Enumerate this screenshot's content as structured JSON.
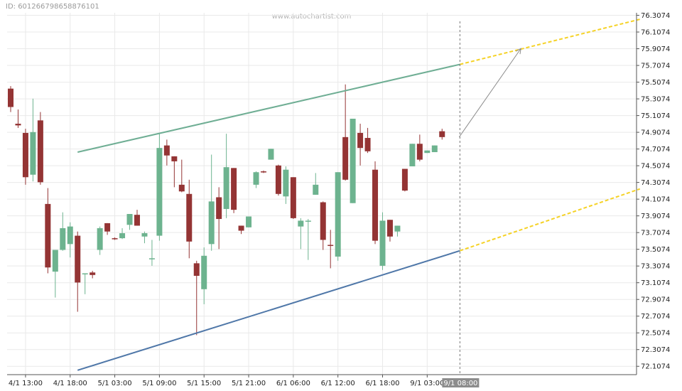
{
  "header": {
    "id_text": "ID: 601266798658876101",
    "watermark": "www.autochartist.com"
  },
  "chart_data": {
    "type": "candlestick",
    "y_ticks": [
      76.3074,
      76.1074,
      75.9074,
      75.7074,
      75.5074,
      75.3074,
      75.1074,
      74.9074,
      74.7074,
      74.5074,
      74.3074,
      74.1074,
      73.9074,
      73.7074,
      73.5074,
      73.3074,
      73.1074,
      72.9074,
      72.7074,
      72.5074,
      72.3074,
      72.1074
    ],
    "ylim": [
      72.0074,
      76.3374
    ],
    "x_labels": [
      {
        "bar": 2,
        "label": "4/1 13:00"
      },
      {
        "bar": 8,
        "label": "4/1 18:00"
      },
      {
        "bar": 14,
        "label": "5/1 03:00"
      },
      {
        "bar": 20,
        "label": "5/1 09:00"
      },
      {
        "bar": 26,
        "label": "5/1 15:00"
      },
      {
        "bar": 32,
        "label": "5/1 21:00"
      },
      {
        "bar": 38,
        "label": "6/1 06:00"
      },
      {
        "bar": 44,
        "label": "6/1 12:00"
      },
      {
        "bar": 50,
        "label": "6/1 18:00"
      },
      {
        "bar": 56,
        "label": "9/1 03:00"
      }
    ],
    "current_time_label": "9/1 08:00",
    "candles": [
      {
        "o": 75.43,
        "h": 75.46,
        "l": 75.15,
        "c": 75.21
      },
      {
        "o": 75.01,
        "h": 75.18,
        "l": 74.96,
        "c": 74.99
      },
      {
        "o": 74.9,
        "h": 74.95,
        "l": 74.28,
        "c": 74.37
      },
      {
        "o": 74.4,
        "h": 75.31,
        "l": 74.32,
        "c": 74.91
      },
      {
        "o": 75.05,
        "h": 75.15,
        "l": 74.28,
        "c": 74.31
      },
      {
        "o": 74.05,
        "h": 74.24,
        "l": 73.22,
        "c": 73.29
      },
      {
        "o": 73.24,
        "h": 73.5,
        "l": 72.93,
        "c": 73.5
      },
      {
        "o": 73.5,
        "h": 73.95,
        "l": 73.49,
        "c": 73.76
      },
      {
        "o": 73.57,
        "h": 73.83,
        "l": 73.41,
        "c": 73.78
      },
      {
        "o": 73.67,
        "h": 73.72,
        "l": 72.76,
        "c": 73.11
      },
      {
        "o": 73.22,
        "h": 73.22,
        "l": 72.97,
        "c": 73.22
      },
      {
        "o": 73.23,
        "h": 73.25,
        "l": 73.16,
        "c": 73.2
      },
      {
        "o": 73.5,
        "h": 73.78,
        "l": 73.44,
        "c": 73.76
      },
      {
        "o": 73.82,
        "h": 73.82,
        "l": 73.68,
        "c": 73.72
      },
      {
        "o": 73.64,
        "h": 73.65,
        "l": 73.62,
        "c": 73.63
      },
      {
        "o": 73.64,
        "h": 73.76,
        "l": 73.63,
        "c": 73.7
      },
      {
        "o": 73.8,
        "h": 73.9,
        "l": 73.74,
        "c": 73.93
      },
      {
        "o": 73.92,
        "h": 73.98,
        "l": 73.79,
        "c": 73.79
      },
      {
        "o": 73.66,
        "h": 73.72,
        "l": 73.58,
        "c": 73.7
      },
      {
        "o": 73.39,
        "h": 73.62,
        "l": 73.31,
        "c": 73.4
      },
      {
        "o": 73.67,
        "h": 74.9,
        "l": 73.61,
        "c": 74.72
      },
      {
        "o": 74.75,
        "h": 74.82,
        "l": 74.51,
        "c": 74.63
      },
      {
        "o": 74.62,
        "h": 74.62,
        "l": 74.25,
        "c": 74.56
      },
      {
        "o": 74.28,
        "h": 74.58,
        "l": 74.19,
        "c": 74.2
      },
      {
        "o": 74.17,
        "h": 74.34,
        "l": 73.4,
        "c": 73.6
      },
      {
        "o": 73.34,
        "h": 73.37,
        "l": 72.48,
        "c": 73.19
      },
      {
        "o": 73.03,
        "h": 73.53,
        "l": 72.85,
        "c": 73.43
      },
      {
        "o": 73.57,
        "h": 74.64,
        "l": 73.49,
        "c": 74.08
      },
      {
        "o": 74.13,
        "h": 74.25,
        "l": 73.51,
        "c": 73.87
      },
      {
        "o": 73.99,
        "h": 74.89,
        "l": 73.88,
        "c": 74.49
      },
      {
        "o": 74.48,
        "h": 74.48,
        "l": 73.94,
        "c": 73.98
      },
      {
        "o": 73.79,
        "h": 73.79,
        "l": 73.69,
        "c": 73.73
      },
      {
        "o": 73.77,
        "h": 73.9,
        "l": 73.77,
        "c": 73.9
      },
      {
        "o": 74.28,
        "h": 74.44,
        "l": 74.24,
        "c": 74.43
      },
      {
        "o": 74.44,
        "h": 74.45,
        "l": 74.42,
        "c": 74.43
      },
      {
        "o": 74.58,
        "h": 74.71,
        "l": 74.58,
        "c": 74.71
      },
      {
        "o": 74.51,
        "h": 74.52,
        "l": 74.15,
        "c": 74.17
      },
      {
        "o": 74.14,
        "h": 74.5,
        "l": 74.05,
        "c": 74.46
      },
      {
        "o": 74.37,
        "h": 74.37,
        "l": 73.87,
        "c": 73.88
      },
      {
        "o": 73.78,
        "h": 73.88,
        "l": 73.51,
        "c": 73.85
      },
      {
        "o": 73.85,
        "h": 73.87,
        "l": 73.38,
        "c": 73.85
      },
      {
        "o": 74.16,
        "h": 74.42,
        "l": 74.16,
        "c": 74.28
      },
      {
        "o": 74.07,
        "h": 74.08,
        "l": 73.5,
        "c": 73.62
      },
      {
        "o": 73.56,
        "h": 73.74,
        "l": 73.28,
        "c": 73.55
      },
      {
        "o": 73.42,
        "h": 74.43,
        "l": 73.37,
        "c": 74.43
      },
      {
        "o": 74.85,
        "h": 75.48,
        "l": 74.33,
        "c": 74.34
      },
      {
        "o": 74.06,
        "h": 75.07,
        "l": 74.06,
        "c": 75.07
      },
      {
        "o": 74.9,
        "h": 75.01,
        "l": 74.51,
        "c": 74.72
      },
      {
        "o": 74.84,
        "h": 74.96,
        "l": 74.66,
        "c": 74.68
      },
      {
        "o": 74.46,
        "h": 74.56,
        "l": 73.57,
        "c": 73.61
      },
      {
        "o": 73.31,
        "h": 73.95,
        "l": 73.26,
        "c": 73.85
      },
      {
        "o": 73.86,
        "h": 73.86,
        "l": 73.6,
        "c": 73.66
      },
      {
        "o": 73.72,
        "h": 73.79,
        "l": 73.66,
        "c": 73.79
      },
      {
        "o": 74.47,
        "h": 74.47,
        "l": 74.2,
        "c": 74.21
      },
      {
        "o": 74.5,
        "h": 74.77,
        "l": 74.5,
        "c": 74.77
      },
      {
        "o": 74.77,
        "h": 74.88,
        "l": 74.56,
        "c": 74.58
      },
      {
        "o": 74.66,
        "h": 74.69,
        "l": 74.66,
        "c": 74.69
      },
      {
        "o": 74.67,
        "h": 74.75,
        "l": 74.67,
        "c": 74.75
      },
      {
        "o": 74.92,
        "h": 74.95,
        "l": 74.82,
        "c": 74.85
      }
    ],
    "channel": {
      "upper": {
        "start_bar": 9,
        "start": 74.67,
        "end_bar": 60.4,
        "end": 75.72
      },
      "lower": {
        "start_bar": 9,
        "start": 72.06,
        "end_bar": 60.4,
        "end": 73.49
      }
    },
    "forecast": {
      "upper": {
        "start_bar": 60.4,
        "start": 75.72,
        "end_bar": 84.6,
        "end": 76.26
      },
      "lower": {
        "start_bar": 60.4,
        "start": 73.49,
        "end_bar": 84.6,
        "end": 74.23
      }
    },
    "arrow": {
      "from_bar": 60.3,
      "from": 74.85,
      "to_bar": 68.6,
      "to": 75.91
    },
    "current_bar": 60.4,
    "colors": {
      "bull": "#6db38f",
      "bear": "#943434",
      "upper_line": "#6fae94",
      "lower_line": "#4f77a8",
      "forecast": "#f5d226",
      "arrow": "#8c8c8c",
      "grid": "#e9e9e9",
      "axis": "#555555",
      "time_badge_bg": "#8c8c8c",
      "time_badge_text": "#ffffff"
    }
  }
}
